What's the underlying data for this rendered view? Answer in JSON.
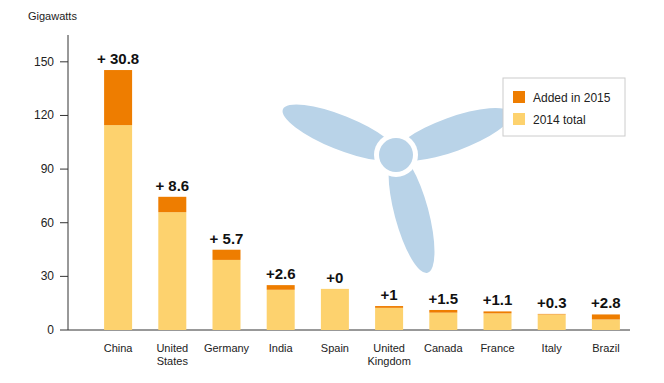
{
  "chart_data": {
    "type": "bar",
    "stacked": true,
    "y_label": "Gigawatts",
    "categories": [
      "China",
      "United States",
      "Germany",
      "India",
      "Spain",
      "United Kingdom",
      "Canada",
      "France",
      "Italy",
      "Brazil"
    ],
    "series": [
      {
        "name": "2014 total",
        "color": "#fdd26e",
        "values": [
          114.6,
          65.9,
          39.2,
          22.5,
          23.0,
          12.4,
          9.7,
          9.3,
          8.7,
          5.9
        ]
      },
      {
        "name": "Added in 2015",
        "color": "#ee7d00",
        "values": [
          30.8,
          8.6,
          5.7,
          2.6,
          0,
          1,
          1.5,
          1.1,
          0.3,
          2.8
        ],
        "value_labels": [
          "+ 30.8",
          "+ 8.6",
          "+ 5.7",
          "+2.6",
          "+0",
          "+1",
          "+1.5",
          "+1.1",
          "+0.3",
          "+2.8"
        ]
      }
    ],
    "ylim": [
      0,
      165
    ],
    "yticks": [
      0,
      30,
      60,
      90,
      120,
      150
    ],
    "grid": false,
    "legend": "upper right",
    "data_labels": true
  }
}
